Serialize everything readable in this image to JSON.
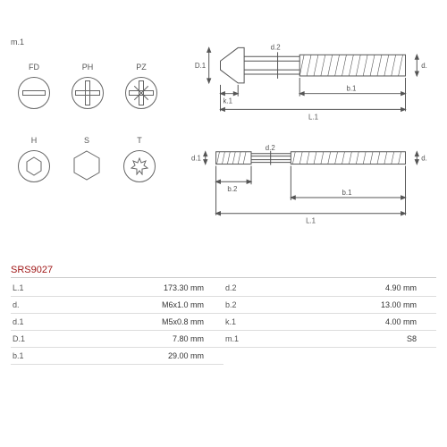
{
  "header_label": "m.1",
  "drive_types": {
    "row1": [
      {
        "code": "FD",
        "kind": "slot"
      },
      {
        "code": "PH",
        "kind": "phillips"
      },
      {
        "code": "PZ",
        "kind": "pozidriv"
      }
    ],
    "row2": [
      {
        "code": "H",
        "kind": "hex-socket"
      },
      {
        "code": "S",
        "kind": "hex-external"
      },
      {
        "code": "T",
        "kind": "torx"
      }
    ]
  },
  "diagram": {
    "labels": [
      "D.1",
      "d.2",
      "d.",
      "k.1",
      "b.1",
      "L.1",
      "d.1",
      "b.2"
    ],
    "stroke": "#555555",
    "fill": "#ffffff"
  },
  "part_code": "SRS9027",
  "specs_left": [
    {
      "k": "L.1",
      "v": "173.30 mm"
    },
    {
      "k": "d.",
      "v": "M6x1.0 mm"
    },
    {
      "k": "d.1",
      "v": "M5x0.8 mm"
    },
    {
      "k": "D.1",
      "v": "7.80 mm"
    },
    {
      "k": "b.1",
      "v": "29.00 mm"
    }
  ],
  "specs_right": [
    {
      "k": "d.2",
      "v": "4.90 mm"
    },
    {
      "k": "b.2",
      "v": "13.00 mm"
    },
    {
      "k": "k.1",
      "v": "4.00 mm"
    },
    {
      "k": "m.1",
      "v": "S8"
    }
  ],
  "style": {
    "icon_stroke": "#666666",
    "text_color": "#555555",
    "code_color": "#a01818",
    "border_color": "#dddddd",
    "font_size_base": 9
  }
}
